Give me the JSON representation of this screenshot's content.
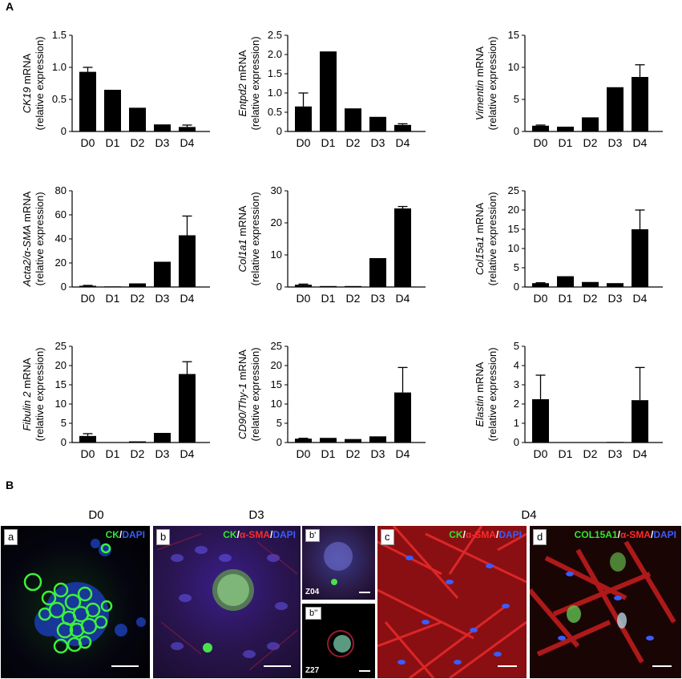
{
  "figure": {
    "panel_a_letter": "A",
    "panel_b_letter": "B",
    "ylabel_suffix": "(relative expression)"
  },
  "chart_data": [
    {
      "type": "bar",
      "gene": "CK19",
      "ylabel": "CK19 mRNA",
      "categories": [
        "D0",
        "D1",
        "D2",
        "D3",
        "D4"
      ],
      "values": [
        0.93,
        0.65,
        0.37,
        0.11,
        0.07
      ],
      "errors": [
        0.07,
        0,
        0,
        0,
        0.03
      ],
      "ylim": [
        0,
        1.5
      ],
      "yticks": [
        "0",
        "0.5",
        "1.0",
        "1.5"
      ],
      "tickvals": [
        0,
        0.5,
        1.0,
        1.5
      ]
    },
    {
      "type": "bar",
      "gene": "Entpd2",
      "ylabel": "Entpd2 mRNA",
      "categories": [
        "D0",
        "D1",
        "D2",
        "D3",
        "D4"
      ],
      "values": [
        0.65,
        2.08,
        0.6,
        0.38,
        0.17
      ],
      "errors": [
        0.35,
        0,
        0,
        0,
        0.03
      ],
      "ylim": [
        0,
        2.5
      ],
      "yticks": [
        "0",
        "0.5",
        "1.0",
        "1.5",
        "2.0",
        "2.5"
      ],
      "tickvals": [
        0,
        0.5,
        1.0,
        1.5,
        2.0,
        2.5
      ]
    },
    {
      "type": "bar",
      "gene": "Vimentin",
      "ylabel": "Vimentin mRNA",
      "categories": [
        "D0",
        "D1",
        "D2",
        "D3",
        "D4"
      ],
      "values": [
        0.9,
        0.75,
        2.2,
        6.9,
        8.5
      ],
      "errors": [
        0.1,
        0,
        0,
        0,
        1.9
      ],
      "ylim": [
        0,
        15
      ],
      "yticks": [
        "0",
        "5",
        "10",
        "15"
      ],
      "tickvals": [
        0,
        5,
        10,
        15
      ]
    },
    {
      "type": "bar",
      "gene": "Acta2/α-SMA",
      "ylabel": "Acta2/α-SMA mRNA",
      "categories": [
        "D0",
        "D1",
        "D2",
        "D3",
        "D4"
      ],
      "values": [
        1,
        0.5,
        3,
        21,
        43
      ],
      "errors": [
        0.3,
        0,
        0,
        0,
        16
      ],
      "ylim": [
        0,
        80
      ],
      "yticks": [
        "0",
        "20",
        "40",
        "60",
        "80"
      ],
      "tickvals": [
        0,
        20,
        40,
        60,
        80
      ]
    },
    {
      "type": "bar",
      "gene": "Col1a1",
      "ylabel": "Col1a1 mRNA",
      "categories": [
        "D0",
        "D1",
        "D2",
        "D3",
        "D4"
      ],
      "values": [
        0.7,
        0.3,
        0.3,
        9,
        24.5
      ],
      "errors": [
        0.2,
        0,
        0,
        0,
        0.6
      ],
      "ylim": [
        0,
        30
      ],
      "yticks": [
        "0",
        "10",
        "20",
        "30"
      ],
      "tickvals": [
        0,
        10,
        20,
        30
      ]
    },
    {
      "type": "bar",
      "gene": "Col15a1",
      "ylabel": "Col15a1 mRNA",
      "categories": [
        "D0",
        "D1",
        "D2",
        "D3",
        "D4"
      ],
      "values": [
        1,
        2.8,
        1.3,
        1,
        15
      ],
      "errors": [
        0.1,
        0,
        0,
        0,
        5
      ],
      "ylim": [
        0,
        25
      ],
      "yticks": [
        "0",
        "5",
        "10",
        "15",
        "20",
        "25"
      ],
      "tickvals": [
        0,
        5,
        10,
        15,
        20,
        25
      ]
    },
    {
      "type": "bar",
      "gene": "Fibulin 2",
      "ylabel": "Fibulin 2 mRNA",
      "categories": [
        "D0",
        "D1",
        "D2",
        "D3",
        "D4"
      ],
      "values": [
        1.7,
        0.1,
        0.3,
        2.5,
        17.8
      ],
      "errors": [
        0.6,
        0,
        0,
        0,
        3.2
      ],
      "ylim": [
        0,
        25
      ],
      "yticks": [
        "0",
        "5",
        "10",
        "15",
        "20",
        "25"
      ],
      "tickvals": [
        0,
        5,
        10,
        15,
        20,
        25
      ]
    },
    {
      "type": "bar",
      "gene": "CD90/Thy-1",
      "ylabel": "CD90/Thy-1 mRNA",
      "categories": [
        "D0",
        "D1",
        "D2",
        "D3",
        "D4"
      ],
      "values": [
        1,
        1.2,
        0.9,
        1.6,
        13
      ],
      "errors": [
        0.1,
        0,
        0,
        0,
        6.5
      ],
      "ylim": [
        0,
        25
      ],
      "yticks": [
        "0",
        "5",
        "10",
        "15",
        "20",
        "25"
      ],
      "tickvals": [
        0,
        5,
        10,
        15,
        20,
        25
      ]
    },
    {
      "type": "bar",
      "gene": "Elastin",
      "ylabel": "Elastin mRNA",
      "categories": [
        "D0",
        "D1",
        "D2",
        "D3",
        "D4"
      ],
      "values": [
        2.25,
        0.02,
        0.01,
        0.03,
        2.2
      ],
      "errors": [
        1.25,
        0,
        0,
        0,
        1.7
      ],
      "ylim": [
        0,
        5
      ],
      "yticks": [
        "0",
        "1",
        "2",
        "3",
        "4",
        "5"
      ],
      "tickvals": [
        0,
        1,
        2,
        3,
        4,
        5
      ]
    }
  ],
  "micrographs": {
    "col_labels": [
      "D0",
      "D3",
      "D4"
    ],
    "a": {
      "letter": "a",
      "stain_parts": [
        "CK",
        "/",
        "DAPI"
      ]
    },
    "b": {
      "letter": "b",
      "stain_parts": [
        "CK",
        "/",
        "α-SMA",
        "/",
        "DAPI"
      ]
    },
    "b1": {
      "letter": "b'",
      "z": "Z04"
    },
    "b2": {
      "letter": "b''",
      "z": "Z27"
    },
    "c": {
      "letter": "c",
      "stain_parts": [
        "CK",
        "/",
        "α-SMA",
        "/",
        "DAPI"
      ]
    },
    "d": {
      "letter": "d",
      "stain_parts": [
        "COL15A1",
        "/",
        "α-SMA",
        "/",
        "DAPI"
      ]
    }
  }
}
